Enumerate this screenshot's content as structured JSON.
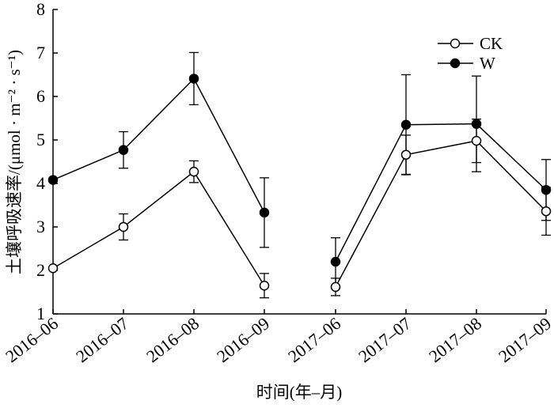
{
  "chart_data": {
    "type": "line",
    "categories": [
      "2016–06",
      "2016–07",
      "2016–08",
      "2016–09",
      "2017–06",
      "2017–07",
      "2017–08",
      "2017–09"
    ],
    "segments": [
      [
        0,
        3
      ],
      [
        4,
        7
      ]
    ],
    "xlabel": "时间(年–月)",
    "ylabel": "土壤呼吸速率/(μmol · m⁻² · s⁻¹)",
    "ylim": [
      1,
      8
    ],
    "yticks": [
      1,
      2,
      3,
      4,
      5,
      6,
      7,
      8
    ],
    "legend_position": "top-right",
    "grid": false,
    "series": [
      {
        "name": "CK",
        "marker": "open-circle",
        "values": [
          2.05,
          3.0,
          4.27,
          1.65,
          1.62,
          4.66,
          4.98,
          3.36
        ],
        "errors": [
          0.0,
          0.3,
          0.25,
          0.28,
          0.2,
          0.45,
          0.5,
          0.55
        ]
      },
      {
        "name": "W",
        "marker": "filled-circle",
        "values": [
          4.08,
          4.77,
          6.41,
          3.33,
          2.2,
          5.35,
          5.37,
          3.85
        ],
        "errors": [
          0.0,
          0.42,
          0.6,
          0.8,
          0.55,
          1.15,
          1.1,
          0.7
        ]
      }
    ]
  }
}
